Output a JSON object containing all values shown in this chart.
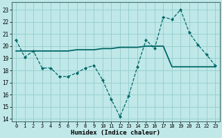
{
  "xlabel": "Humidex (Indice chaleur)",
  "bg_color": "#c0e8e8",
  "grid_color": "#98d0d0",
  "line_color": "#006868",
  "y_dashed": [
    20.5,
    19.1,
    19.6,
    18.2,
    18.2,
    17.5,
    17.5,
    17.8,
    18.2,
    18.4,
    17.2,
    15.6,
    14.2,
    15.9,
    18.3,
    20.5,
    19.8,
    22.4,
    22.2,
    23.0,
    21.1,
    20.1,
    19.3,
    18.4
  ],
  "y_solid": [
    19.6,
    19.6,
    19.6,
    19.6,
    19.6,
    19.6,
    19.6,
    19.7,
    19.7,
    19.7,
    19.8,
    19.8,
    19.9,
    19.9,
    19.9,
    20.0,
    20.0,
    20.0,
    18.3,
    18.3,
    18.3,
    18.3,
    18.3,
    18.3
  ],
  "ylim": [
    13.8,
    23.6
  ],
  "yticks": [
    14,
    15,
    16,
    17,
    18,
    19,
    20,
    21,
    22,
    23
  ],
  "xticks": [
    0,
    1,
    2,
    3,
    4,
    5,
    6,
    7,
    8,
    9,
    10,
    11,
    12,
    13,
    14,
    15,
    16,
    17,
    18,
    19,
    20,
    21,
    22,
    23
  ]
}
